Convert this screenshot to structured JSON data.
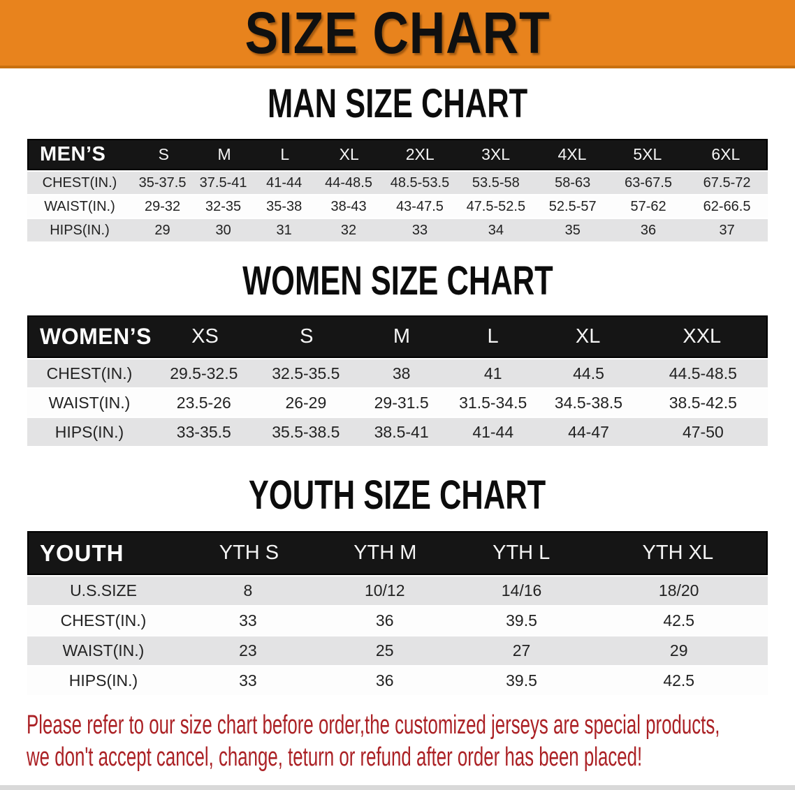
{
  "banner": {
    "title": "SIZE CHART"
  },
  "colors": {
    "banner_orange": "#E8831D",
    "banner_orange_dark": "#C9700F",
    "header_black": "#151515",
    "row_gray": "#e3e3e4",
    "disclaimer_red": "#AB2125"
  },
  "sections": [
    {
      "heading": "MAN SIZE CHART",
      "table": {
        "header": [
          "MEN’S",
          "S",
          "M",
          "L",
          "XL",
          "2XL",
          "3XL",
          "4XL",
          "5XL",
          "6XL"
        ],
        "rows": [
          [
            "CHEST(IN.)",
            "35-37.5",
            "37.5-41",
            "41-44",
            "44-48.5",
            "48.5-53.5",
            "53.5-58",
            "58-63",
            "63-67.5",
            "67.5-72"
          ],
          [
            "WAIST(IN.)",
            "29-32",
            "32-35",
            "35-38",
            "38-43",
            "43-47.5",
            "47.5-52.5",
            "52.5-57",
            "57-62",
            "62-66.5"
          ],
          [
            "HIPS(IN.)",
            "29",
            "30",
            "31",
            "32",
            "33",
            "34",
            "35",
            "36",
            "37"
          ]
        ]
      }
    },
    {
      "heading": "WOMEN SIZE CHART",
      "table": {
        "header": [
          "WOMEN’S",
          "XS",
          "S",
          "M",
          "L",
          "XL",
          "XXL"
        ],
        "rows": [
          [
            "CHEST(IN.)",
            "29.5-32.5",
            "32.5-35.5",
            "38",
            "41",
            "44.5",
            "44.5-48.5"
          ],
          [
            "WAIST(IN.)",
            "23.5-26",
            "26-29",
            "29-31.5",
            "31.5-34.5",
            "34.5-38.5",
            "38.5-42.5"
          ],
          [
            "HIPS(IN.)",
            "33-35.5",
            "35.5-38.5",
            "38.5-41",
            "41-44",
            "44-47",
            "47-50"
          ]
        ]
      }
    },
    {
      "heading": "YOUTH SIZE CHART",
      "table": {
        "header": [
          "YOUTH",
          "YTH S",
          "YTH M",
          "YTH L",
          "YTH XL"
        ],
        "rows": [
          [
            "U.S.SIZE",
            "8",
            "10/12",
            "14/16",
            "18/20"
          ],
          [
            "CHEST(IN.)",
            "33",
            "36",
            "39.5",
            "42.5"
          ],
          [
            "WAIST(IN.)",
            "23",
            "25",
            "27",
            "29"
          ],
          [
            "HIPS(IN.)",
            "33",
            "36",
            "39.5",
            "42.5"
          ]
        ]
      }
    }
  ],
  "disclaimer": {
    "lines": [
      "Please refer to our size chart before order,the customized jerseys are special products,",
      "we don't accept cancel, change, teturn or refund after order has been placed!"
    ]
  }
}
